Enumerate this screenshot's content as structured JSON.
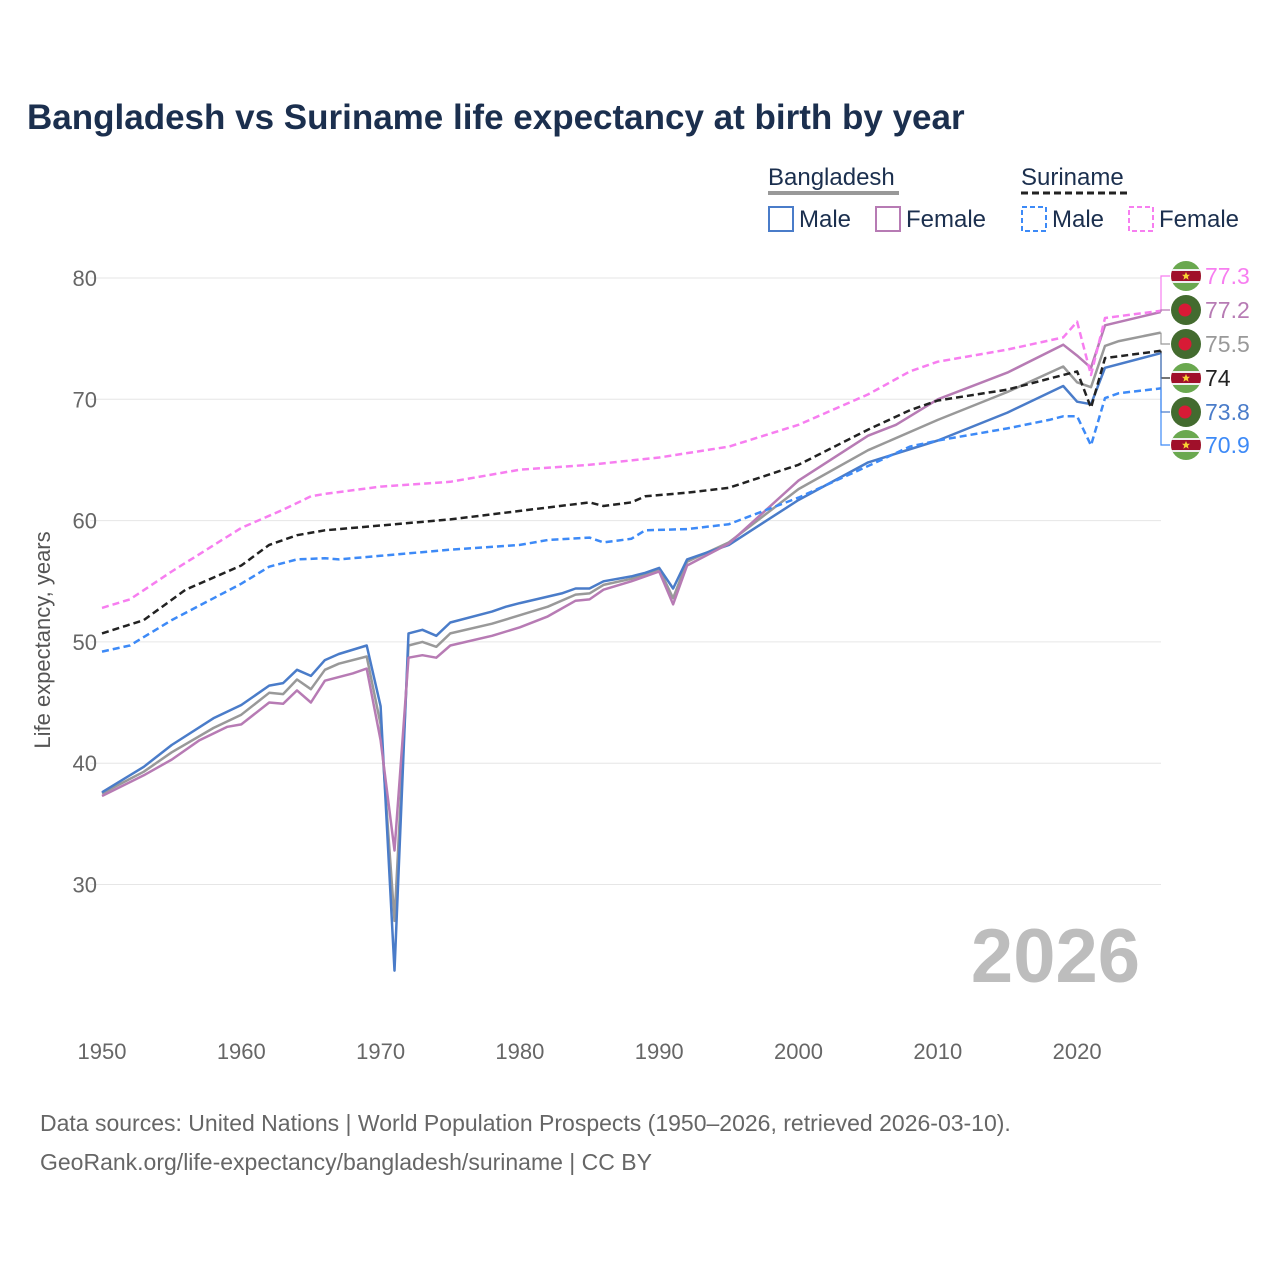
{
  "chart_data": {
    "type": "line",
    "title": "Bangladesh vs Suriname life expectancy at birth by year",
    "xlabel": "",
    "ylabel": "Life expectancy, years",
    "xlim": [
      1950,
      2026
    ],
    "ylim": [
      20,
      82
    ],
    "x_ticks": [
      "1950",
      "1960",
      "1970",
      "1980",
      "1990",
      "2000",
      "2010",
      "2020"
    ],
    "y_ticks": [
      "30",
      "40",
      "50",
      "60",
      "70",
      "80"
    ],
    "grid": true,
    "year_watermark": "2026",
    "legend": {
      "groups": [
        {
          "name": "Bangladesh",
          "items": [
            "Male",
            "Female"
          ]
        },
        {
          "name": "Suriname",
          "items": [
            "Male",
            "Female"
          ]
        }
      ],
      "placement": "top-right"
    },
    "series": [
      {
        "name": "Suriname Female",
        "color": "#f77ef0",
        "dash": true,
        "flag": "suriname",
        "end_label": "77.3",
        "points": [
          [
            1950,
            52.8
          ],
          [
            1952,
            53.5
          ],
          [
            1955,
            55.8
          ],
          [
            1960,
            59.4
          ],
          [
            1963,
            60.9
          ],
          [
            1965,
            62.0
          ],
          [
            1966,
            62.2
          ],
          [
            1970,
            62.8
          ],
          [
            1975,
            63.2
          ],
          [
            1980,
            64.2
          ],
          [
            1985,
            64.6
          ],
          [
            1990,
            65.2
          ],
          [
            1995,
            66.1
          ],
          [
            2000,
            67.9
          ],
          [
            2005,
            70.4
          ],
          [
            2008,
            72.3
          ],
          [
            2010,
            73.1
          ],
          [
            2015,
            74.1
          ],
          [
            2019,
            75.1
          ],
          [
            2020,
            76.4
          ],
          [
            2021,
            72.0
          ],
          [
            2022,
            76.7
          ],
          [
            2026,
            77.3
          ]
        ]
      },
      {
        "name": "Bangladesh Female",
        "color": "#b77bb4",
        "dash": false,
        "flag": "bangladesh",
        "end_label": "77.2",
        "points": [
          [
            1950,
            37.3
          ],
          [
            1953,
            39.0
          ],
          [
            1955,
            40.3
          ],
          [
            1957,
            41.9
          ],
          [
            1959,
            43.0
          ],
          [
            1960,
            43.2
          ],
          [
            1962,
            45.0
          ],
          [
            1963,
            44.9
          ],
          [
            1964,
            46.0
          ],
          [
            1965,
            45.0
          ],
          [
            1966,
            46.8
          ],
          [
            1968,
            47.4
          ],
          [
            1969,
            47.8
          ],
          [
            1970,
            41.9
          ],
          [
            1971,
            32.8
          ],
          [
            1972,
            48.7
          ],
          [
            1973,
            48.9
          ],
          [
            1974,
            48.7
          ],
          [
            1975,
            49.7
          ],
          [
            1978,
            50.5
          ],
          [
            1980,
            51.2
          ],
          [
            1982,
            52.1
          ],
          [
            1984,
            53.4
          ],
          [
            1985,
            53.5
          ],
          [
            1986,
            54.3
          ],
          [
            1988,
            55.0
          ],
          [
            1990,
            55.8
          ],
          [
            1991,
            53.1
          ],
          [
            1992,
            56.3
          ],
          [
            1995,
            58.1
          ],
          [
            2000,
            63.3
          ],
          [
            2005,
            67.0
          ],
          [
            2007,
            67.9
          ],
          [
            2010,
            70.0
          ],
          [
            2015,
            72.2
          ],
          [
            2019,
            74.5
          ],
          [
            2020,
            73.6
          ],
          [
            2021,
            72.6
          ],
          [
            2022,
            76.1
          ],
          [
            2026,
            77.2
          ]
        ]
      },
      {
        "name": "Bangladesh",
        "color": "#999999",
        "dash": false,
        "flag": "bangladesh",
        "end_label": "75.5",
        "points": [
          [
            1950,
            37.5
          ],
          [
            1953,
            39.3
          ],
          [
            1955,
            40.9
          ],
          [
            1958,
            42.9
          ],
          [
            1960,
            44.0
          ],
          [
            1962,
            45.8
          ],
          [
            1963,
            45.7
          ],
          [
            1964,
            46.9
          ],
          [
            1965,
            46.1
          ],
          [
            1966,
            47.7
          ],
          [
            1967,
            48.2
          ],
          [
            1969,
            48.8
          ],
          [
            1970,
            43.2
          ],
          [
            1971,
            27.0
          ],
          [
            1972,
            49.7
          ],
          [
            1973,
            50.0
          ],
          [
            1974,
            49.6
          ],
          [
            1975,
            50.7
          ],
          [
            1978,
            51.5
          ],
          [
            1980,
            52.2
          ],
          [
            1982,
            52.9
          ],
          [
            1984,
            53.9
          ],
          [
            1985,
            54.0
          ],
          [
            1986,
            54.7
          ],
          [
            1988,
            55.2
          ],
          [
            1990,
            56.0
          ],
          [
            1991,
            53.6
          ],
          [
            1992,
            56.6
          ],
          [
            1995,
            58.2
          ],
          [
            2000,
            62.6
          ],
          [
            2005,
            65.8
          ],
          [
            2010,
            68.3
          ],
          [
            2015,
            70.6
          ],
          [
            2019,
            72.7
          ],
          [
            2020,
            71.4
          ],
          [
            2021,
            71.0
          ],
          [
            2022,
            74.4
          ],
          [
            2023,
            74.8
          ],
          [
            2026,
            75.5
          ]
        ]
      },
      {
        "name": "Suriname",
        "color": "#222222",
        "dash": true,
        "flag": "suriname",
        "end_label": "74",
        "points": [
          [
            1950,
            50.7
          ],
          [
            1953,
            51.8
          ],
          [
            1956,
            54.3
          ],
          [
            1960,
            56.3
          ],
          [
            1962,
            58.0
          ],
          [
            1964,
            58.8
          ],
          [
            1966,
            59.2
          ],
          [
            1970,
            59.6
          ],
          [
            1975,
            60.1
          ],
          [
            1980,
            60.8
          ],
          [
            1985,
            61.5
          ],
          [
            1986,
            61.2
          ],
          [
            1988,
            61.5
          ],
          [
            1989,
            62.0
          ],
          [
            1992,
            62.3
          ],
          [
            1995,
            62.7
          ],
          [
            2000,
            64.6
          ],
          [
            2005,
            67.5
          ],
          [
            2008,
            69.1
          ],
          [
            2010,
            69.9
          ],
          [
            2015,
            70.8
          ],
          [
            2019,
            72.0
          ],
          [
            2020,
            72.3
          ],
          [
            2021,
            69.3
          ],
          [
            2022,
            73.4
          ],
          [
            2026,
            74.0
          ]
        ]
      },
      {
        "name": "Bangladesh Male",
        "color": "#4a7cc9",
        "dash": false,
        "flag": "bangladesh",
        "end_label": "73.8",
        "points": [
          [
            1950,
            37.6
          ],
          [
            1953,
            39.7
          ],
          [
            1955,
            41.5
          ],
          [
            1958,
            43.7
          ],
          [
            1960,
            44.8
          ],
          [
            1962,
            46.4
          ],
          [
            1963,
            46.6
          ],
          [
            1964,
            47.7
          ],
          [
            1965,
            47.2
          ],
          [
            1966,
            48.5
          ],
          [
            1967,
            49.0
          ],
          [
            1969,
            49.7
          ],
          [
            1970,
            44.7
          ],
          [
            1971,
            22.9
          ],
          [
            1972,
            50.7
          ],
          [
            1973,
            51.0
          ],
          [
            1974,
            50.5
          ],
          [
            1975,
            51.6
          ],
          [
            1978,
            52.5
          ],
          [
            1979,
            52.9
          ],
          [
            1980,
            53.2
          ],
          [
            1983,
            54.0
          ],
          [
            1984,
            54.4
          ],
          [
            1985,
            54.4
          ],
          [
            1986,
            55.0
          ],
          [
            1988,
            55.4
          ],
          [
            1989,
            55.7
          ],
          [
            1990,
            56.1
          ],
          [
            1991,
            54.4
          ],
          [
            1992,
            56.8
          ],
          [
            1995,
            58.0
          ],
          [
            2000,
            61.7
          ],
          [
            2005,
            64.8
          ],
          [
            2010,
            66.6
          ],
          [
            2015,
            68.9
          ],
          [
            2019,
            71.1
          ],
          [
            2020,
            69.8
          ],
          [
            2021,
            69.6
          ],
          [
            2022,
            72.6
          ],
          [
            2026,
            73.8
          ]
        ]
      },
      {
        "name": "Suriname Male",
        "color": "#3d8af7",
        "dash": true,
        "flag": "suriname",
        "end_label": "70.9",
        "points": [
          [
            1950,
            49.2
          ],
          [
            1952,
            49.7
          ],
          [
            1955,
            51.8
          ],
          [
            1960,
            54.8
          ],
          [
            1962,
            56.2
          ],
          [
            1964,
            56.8
          ],
          [
            1966,
            56.9
          ],
          [
            1967,
            56.8
          ],
          [
            1970,
            57.1
          ],
          [
            1975,
            57.6
          ],
          [
            1980,
            58.0
          ],
          [
            1982,
            58.4
          ],
          [
            1985,
            58.6
          ],
          [
            1986,
            58.2
          ],
          [
            1988,
            58.5
          ],
          [
            1989,
            59.2
          ],
          [
            1992,
            59.3
          ],
          [
            1995,
            59.7
          ],
          [
            2000,
            61.9
          ],
          [
            2005,
            64.5
          ],
          [
            2008,
            66.1
          ],
          [
            2010,
            66.6
          ],
          [
            2015,
            67.6
          ],
          [
            2018,
            68.3
          ],
          [
            2019,
            68.6
          ],
          [
            2020,
            68.6
          ],
          [
            2021,
            66.2
          ],
          [
            2022,
            70.1
          ],
          [
            2023,
            70.5
          ],
          [
            2026,
            70.9
          ]
        ]
      }
    ]
  },
  "footer": {
    "line1": "Data sources: United Nations | World Population Prospects (1950–2026, retrieved 2026-03-10).",
    "line2": "GeoRank.org/life-expectancy/bangladesh/suriname | CC BY"
  }
}
